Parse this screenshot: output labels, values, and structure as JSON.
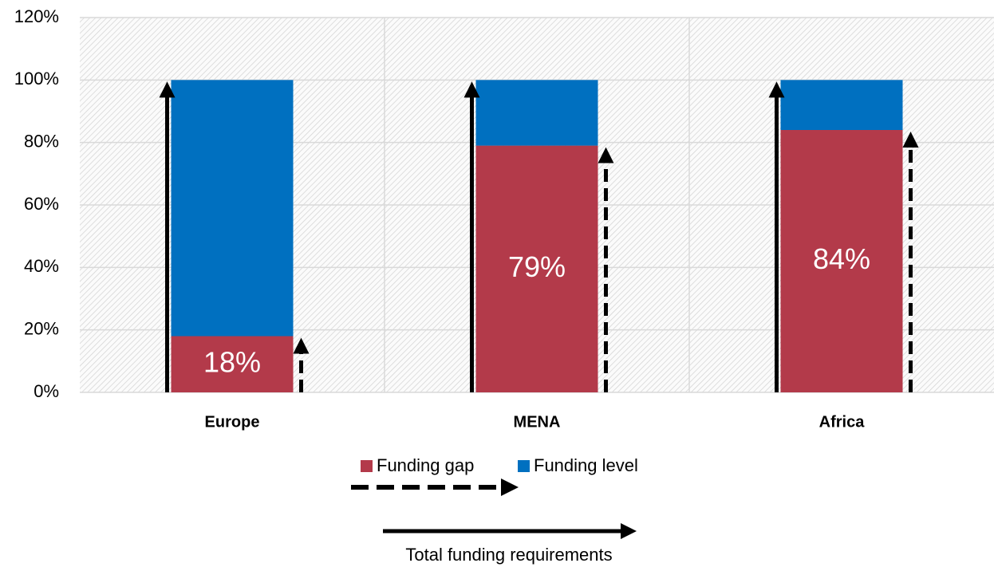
{
  "chart_data": {
    "type": "stacked_bar",
    "categories": [
      "Europe",
      "MENA",
      "Africa"
    ],
    "series": [
      {
        "name": "Funding gap",
        "color": "#b33a4a",
        "values": [
          18,
          79,
          84
        ],
        "value_labels": [
          "18%",
          "79%",
          "84%"
        ]
      },
      {
        "name": "Funding level",
        "color": "#0070c0",
        "values": [
          82,
          21,
          16
        ]
      }
    ],
    "ylim": [
      0,
      120
    ],
    "yticks": [
      {
        "value": 0,
        "label": "0%"
      },
      {
        "value": 20,
        "label": "20%"
      },
      {
        "value": 40,
        "label": "40%"
      },
      {
        "value": 60,
        "label": "60%"
      },
      {
        "value": 80,
        "label": "80%"
      },
      {
        "value": 100,
        "label": "100%"
      },
      {
        "value": 120,
        "label": "120%"
      }
    ],
    "grid": true,
    "annotations": [
      "Total funding requirements"
    ]
  }
}
